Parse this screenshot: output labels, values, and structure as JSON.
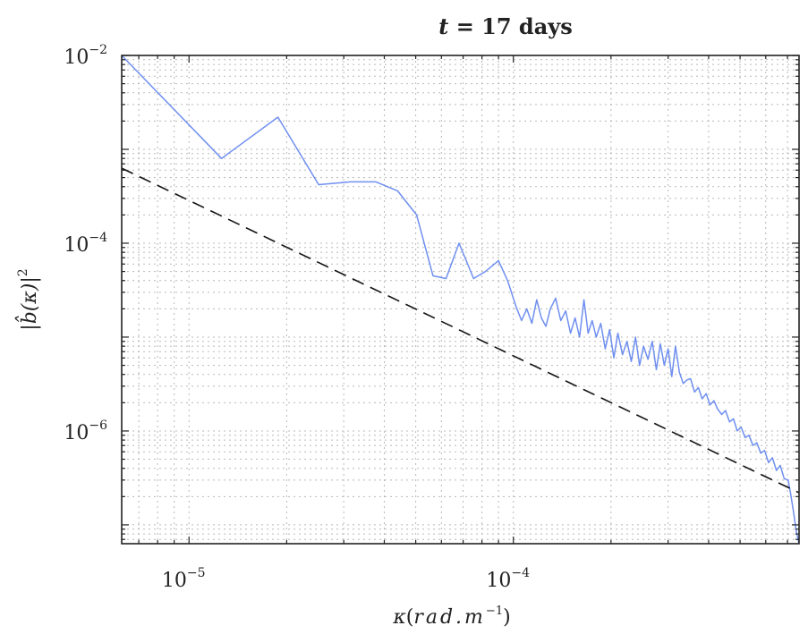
{
  "chart_data": {
    "type": "line",
    "title_prefix": "t",
    "title_rest": " = 17 days",
    "xlabel_parts": [
      "κ",
      "(",
      "rad.m",
      "−1",
      ")"
    ],
    "ylabel_parts": [
      "|",
      "b̂",
      "(κ)",
      "|",
      "2"
    ],
    "xscale": "log",
    "yscale": "log",
    "xlim": [
      6.2e-06,
      0.00076
    ],
    "ylim": [
      6.3e-08,
      0.01
    ],
    "xticks": [
      {
        "value": 1e-05,
        "base": "10",
        "exp": "−5"
      },
      {
        "value": 0.0001,
        "base": "10",
        "exp": "−4"
      }
    ],
    "yticks": [
      {
        "value": 0.01,
        "base": "10",
        "exp": "−2"
      },
      {
        "value": 0.0001,
        "base": "10",
        "exp": "−4"
      },
      {
        "value": 1e-06,
        "base": "10",
        "exp": "−6"
      }
    ],
    "grid": true,
    "series": [
      {
        "style": "solid",
        "color": "#6f8ff0",
        "x": [
          6.2e-06,
          1.26e-05,
          1.88e-05,
          2.51e-05,
          3.14e-05,
          3.77e-05,
          4.4e-05,
          5.03e-05,
          5.65e-05,
          6.2e-05,
          6.8e-05,
          7.54e-05,
          8.2e-05,
          9e-05,
          9.6e-05,
          0.000102,
          0.000106,
          0.00011,
          0.000114,
          0.000118,
          0.000122,
          0.000126,
          0.00013,
          0.000135,
          0.00014,
          0.000145,
          0.00015,
          0.000155,
          0.00016,
          0.000165,
          0.00017,
          0.000175,
          0.00018,
          0.000186,
          0.000192,
          0.000198,
          0.000204,
          0.00021,
          0.000217,
          0.000224,
          0.000231,
          0.000238,
          0.000245,
          0.000252,
          0.00026,
          0.000268,
          0.000276,
          0.000284,
          0.000292,
          0.0003,
          0.000308,
          0.000316,
          0.000325,
          0.000334,
          0.000343,
          0.000352,
          0.000362,
          0.000372,
          0.000382,
          0.000393,
          0.000404,
          0.000415,
          0.000427,
          0.000439,
          0.000451,
          0.000464,
          0.000477,
          0.00049,
          0.000504,
          0.000518,
          0.000533,
          0.000548,
          0.000563,
          0.000579,
          0.000595,
          0.000612,
          0.000629,
          0.000647,
          0.000665,
          0.000684,
          0.000703,
          0.000715,
          0.00073,
          0.000745,
          0.00076
        ],
        "y": [
          0.01,
          0.0008,
          0.0022,
          0.00042,
          0.00045,
          0.00045,
          0.00036,
          0.0002,
          4.5e-05,
          4.2e-05,
          0.0001,
          4.2e-05,
          5e-05,
          6.5e-05,
          4e-05,
          2.1e-05,
          1.5e-05,
          2e-05,
          1.4e-05,
          2.5e-05,
          1.6e-05,
          1.3e-05,
          2e-05,
          2.6e-05,
          1.5e-05,
          1.9e-05,
          1.1e-05,
          1.6e-05,
          1e-05,
          2.5e-05,
          1.1e-05,
          1.5e-05,
          1e-05,
          1.4e-05,
          7.5e-06,
          1.2e-05,
          6e-06,
          1.1e-05,
          6.5e-06,
          9e-06,
          5.5e-06,
          1e-05,
          5e-06,
          8e-06,
          5.8e-06,
          9e-06,
          4.5e-06,
          8.5e-06,
          5e-06,
          7.5e-06,
          3.8e-06,
          8e-06,
          4.2e-06,
          3.2e-06,
          3.5e-06,
          3.6e-06,
          2.6e-06,
          2.9e-06,
          2.2e-06,
          2.5e-06,
          1.9e-06,
          2.1e-06,
          1.7e-06,
          1.5e-06,
          1.65e-06,
          1.25e-06,
          1.35e-06,
          1e-06,
          1.1e-06,
          8.5e-07,
          9e-07,
          7e-07,
          7.5e-07,
          5.8e-07,
          6.2e-07,
          4.6e-07,
          5.2e-07,
          3.8e-07,
          4.3e-07,
          3.1e-07,
          3e-07,
          2.2e-07,
          1.4e-07,
          8.5e-08,
          6.3e-08
        ]
      },
      {
        "style": "dashed",
        "color": "#111111",
        "x": [
          6.2e-06,
          0.00076
        ],
        "y": [
          0.00063,
          2.2e-07
        ]
      }
    ]
  }
}
